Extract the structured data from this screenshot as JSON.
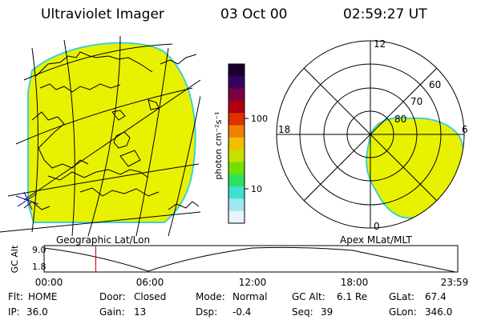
{
  "header": {
    "title": "Ultraviolet Imager",
    "date": "03 Oct 00",
    "time": "02:59:27 UT"
  },
  "left_panel": {
    "caption": "Geographic Lat/Lon"
  },
  "right_panel": {
    "caption": "Apex MLat/MLT",
    "mlt_labels": {
      "top": "12",
      "left": "18",
      "right": "6",
      "bottom": "0"
    },
    "lat_labels": [
      "60",
      "70",
      "80"
    ]
  },
  "colorbar": {
    "unit_label": "photon cm⁻²s⁻¹",
    "tick_100": "100",
    "tick_10": "10",
    "colors": [
      "#1a0030",
      "#3a0060",
      "#7a0040",
      "#b00010",
      "#e03000",
      "#f08000",
      "#f0c000",
      "#c8e000",
      "#70e000",
      "#30e060",
      "#40e0d0",
      "#a0e8f0",
      "#e8f4f8"
    ]
  },
  "timeline": {
    "axis_label": "GC Alt",
    "y_top": "9.0",
    "y_bottom": "1.8",
    "ticks": [
      "00:00",
      "06:00",
      "12:00",
      "18:00",
      "23:59"
    ],
    "marker_hours": 3.0
  },
  "status": {
    "flt_key": "Flt:",
    "flt_val": "HOME",
    "ip_key": "IP:",
    "ip_val": "36.0",
    "door_key": "Door:",
    "door_val": "Closed",
    "gain_key": "Gain:",
    "gain_val": "13",
    "mode_key": "Mode:",
    "mode_val": "Normal",
    "dsp_key": "Dsp:",
    "dsp_val": "-0.4",
    "gcalt_key": "GC Alt:",
    "gcalt_val": "6.1 Re",
    "seq_key": "Seq:",
    "seq_val": "39",
    "glat_key": "GLat:",
    "glat_val": "67.4",
    "glon_key": "GLon:",
    "glon_val": "346.0"
  },
  "colors": {
    "disk_fill": "#e8f200",
    "disk_edge": "#3fd0d0",
    "marker": "#cc0000"
  }
}
